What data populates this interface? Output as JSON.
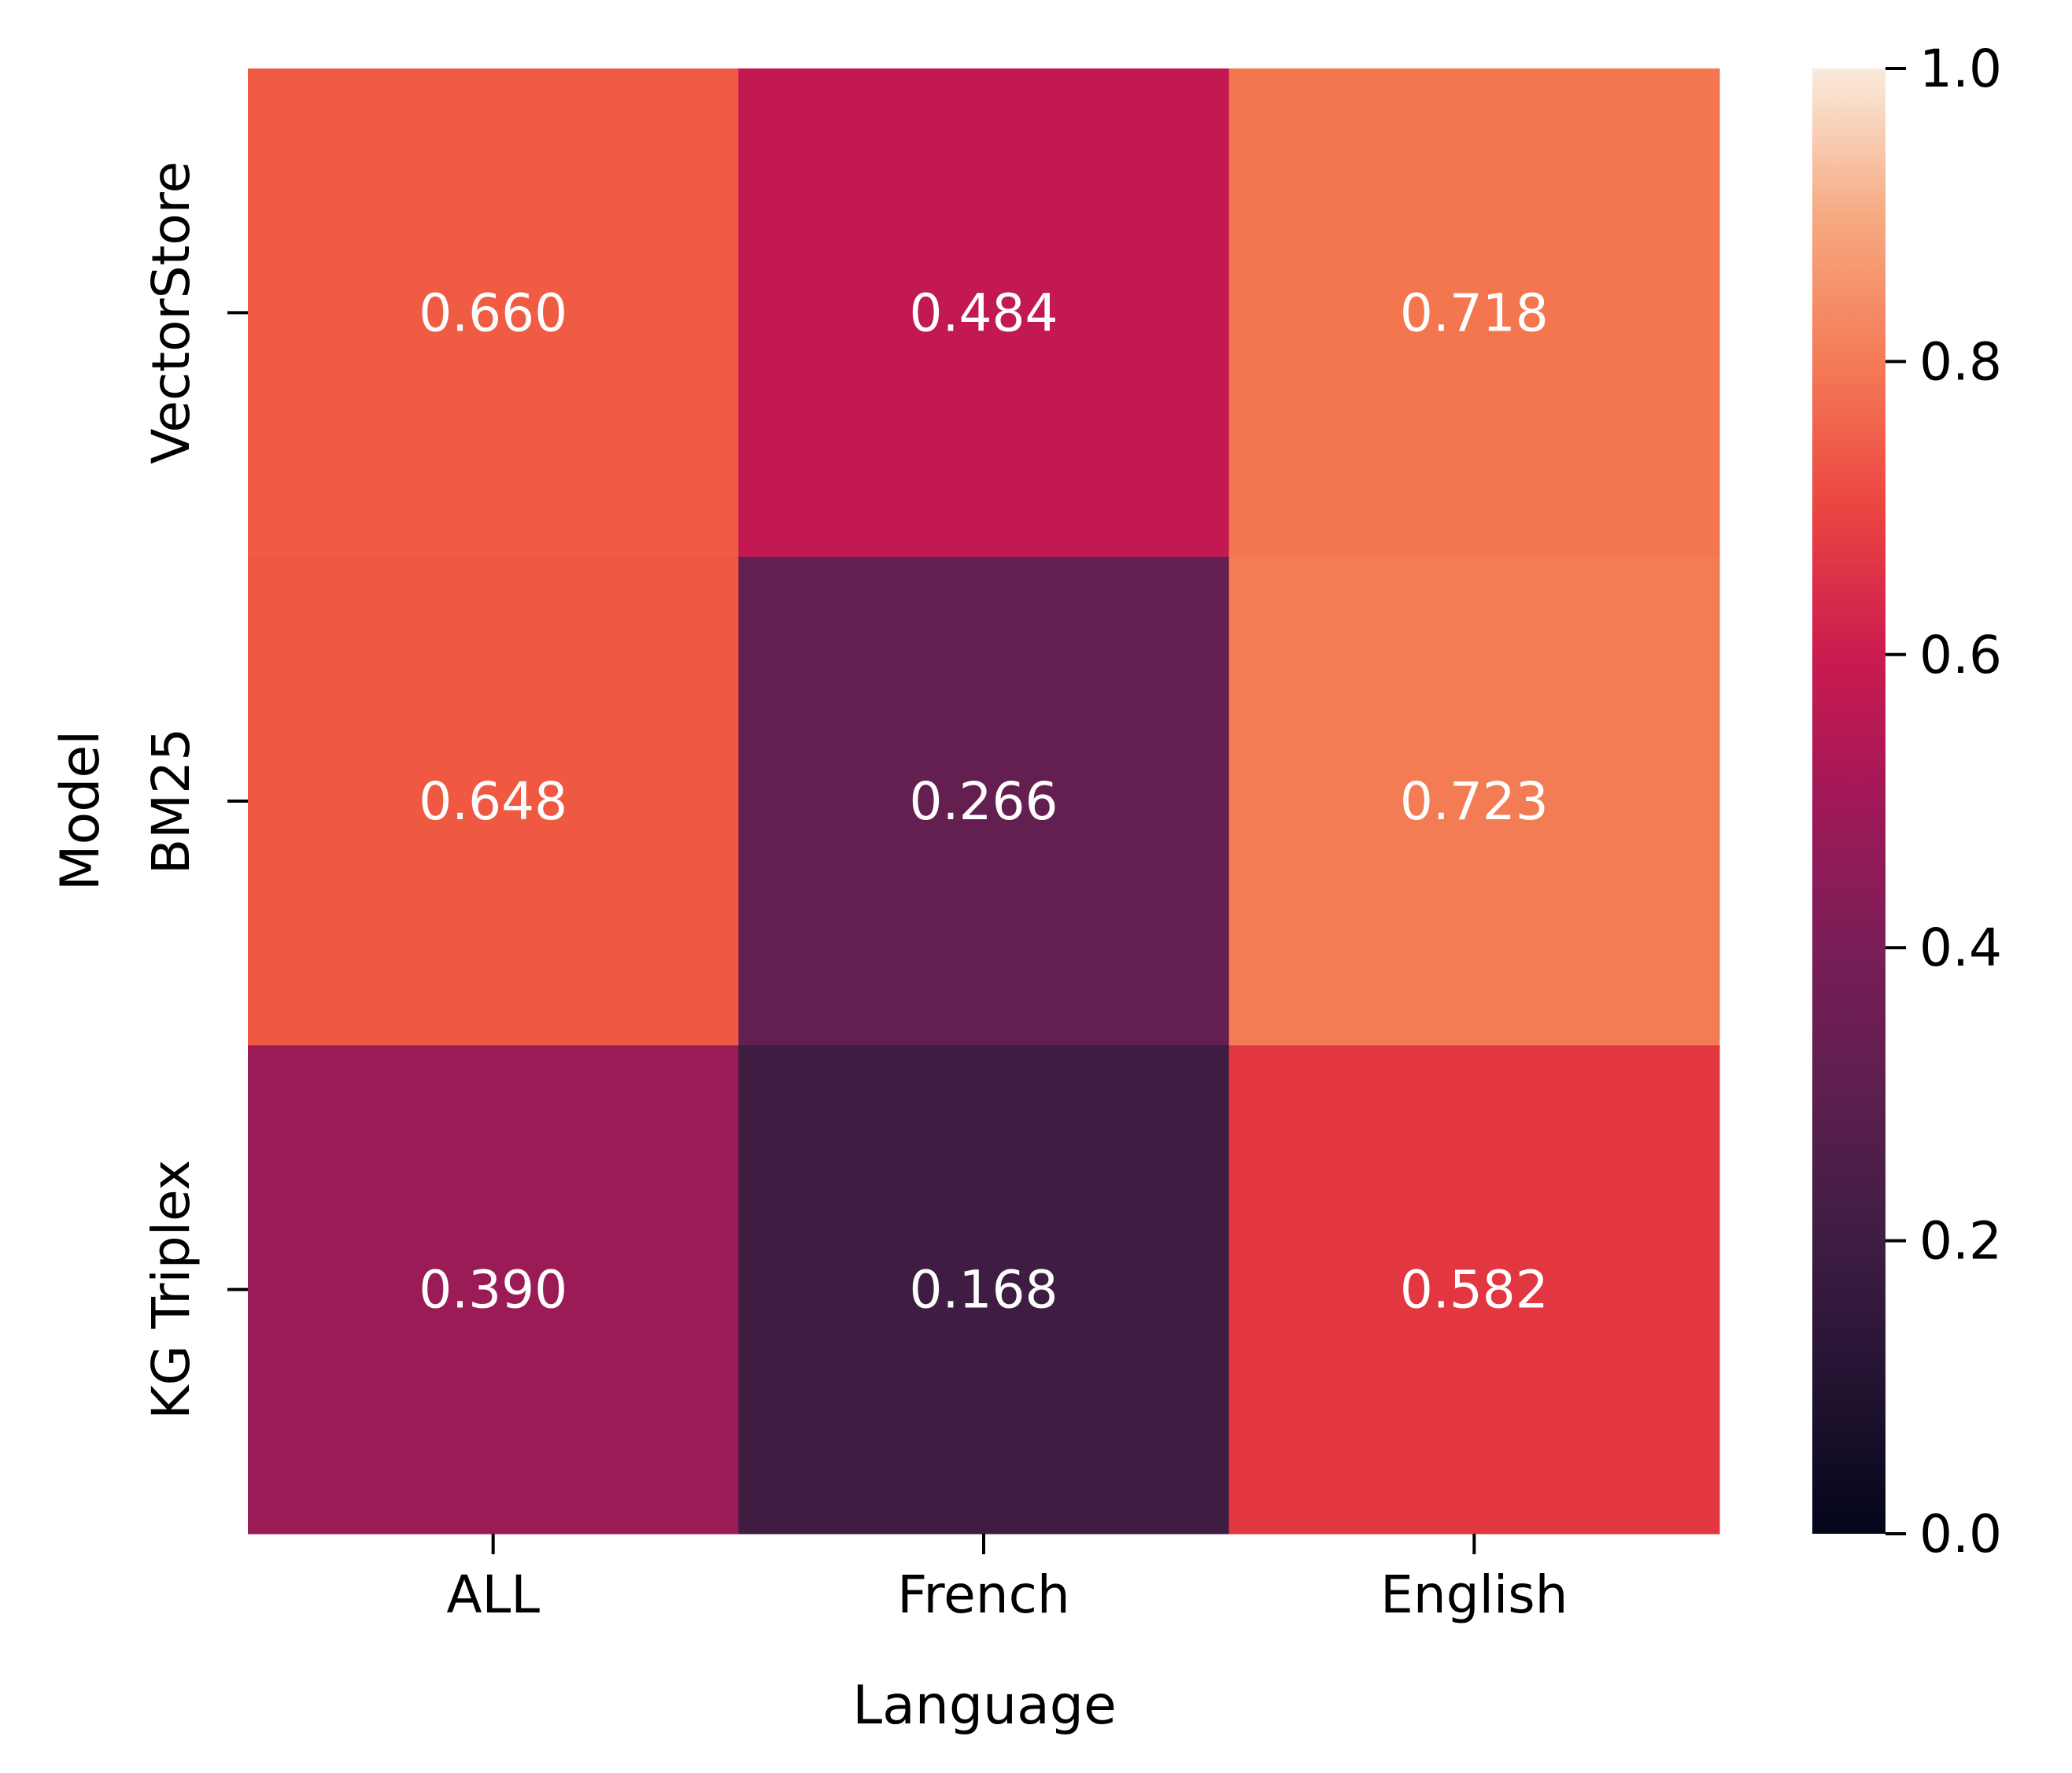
{
  "chart_data": {
    "type": "heatmap",
    "xlabel": "Language",
    "ylabel": "Model",
    "x_categories": [
      "ALL",
      "French",
      "English"
    ],
    "y_categories": [
      "VectorStore",
      "BM25",
      "KG Triplex"
    ],
    "values": [
      [
        0.66,
        0.484,
        0.718
      ],
      [
        0.648,
        0.266,
        0.723
      ],
      [
        0.39,
        0.168,
        0.582
      ]
    ],
    "value_labels": [
      [
        "0.660",
        "0.484",
        "0.718"
      ],
      [
        "0.648",
        "0.266",
        "0.723"
      ],
      [
        "0.390",
        "0.168",
        "0.582"
      ]
    ],
    "colorbar": {
      "range": [
        0.0,
        1.0
      ],
      "colormap": "rocket",
      "ticks": [
        0.0,
        0.2,
        0.4,
        0.6,
        0.8,
        1.0
      ],
      "tick_labels": [
        "0.0",
        "0.2",
        "0.4",
        "0.6",
        "0.8",
        "1.0"
      ]
    },
    "cell_colors": [
      [
        "#f05b43",
        "#c21a50",
        "#f3764f"
      ],
      [
        "#ef5942",
        "#631f50",
        "#f47c55"
      ],
      [
        "#9b1b57",
        "#3f1d42",
        "#e23640"
      ]
    ],
    "grid": false
  }
}
